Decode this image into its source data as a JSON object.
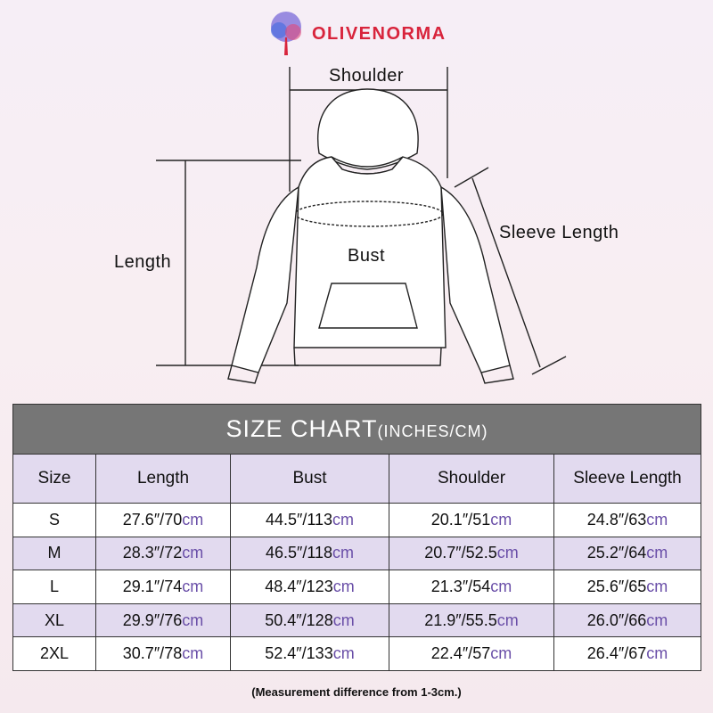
{
  "brand": {
    "name": "OLIVENORMA"
  },
  "diagram": {
    "shoulder": "Shoulder",
    "length": "Length",
    "bust": "Bust",
    "sleeve_length": "Sleeve Length"
  },
  "table": {
    "title": "SIZE CHART",
    "title_unit": "(INCHES/CM)",
    "headers": [
      "Size",
      "Length",
      "Bust",
      "Shoulder",
      "Sleeve Length"
    ],
    "unit": "cm",
    "rows": [
      {
        "size": "S",
        "values": [
          "27.6″/70",
          "44.5″/113",
          "20.1″/51",
          "24.8″/63"
        ]
      },
      {
        "size": "M",
        "values": [
          "28.3″/72",
          "46.5″/118",
          "20.7″/52.5",
          "25.2″/64"
        ]
      },
      {
        "size": "L",
        "values": [
          "29.1″/74",
          "48.4″/123",
          "21.3″/54",
          "25.6″/65"
        ]
      },
      {
        "size": "XL",
        "values": [
          "29.9″/76",
          "50.4″/128",
          "21.9″/55.5",
          "26.0″/66"
        ]
      },
      {
        "size": "2XL",
        "values": [
          "30.7″/78",
          "52.4″/133",
          "22.4″/57",
          "26.4″/67"
        ]
      }
    ]
  },
  "note": "(Measurement difference from 1-3cm.)",
  "colors": {
    "brand": "#d8243c",
    "header_bg": "#767676",
    "accent_row": "#e2daef",
    "cm_text": "#6a4fa8"
  }
}
